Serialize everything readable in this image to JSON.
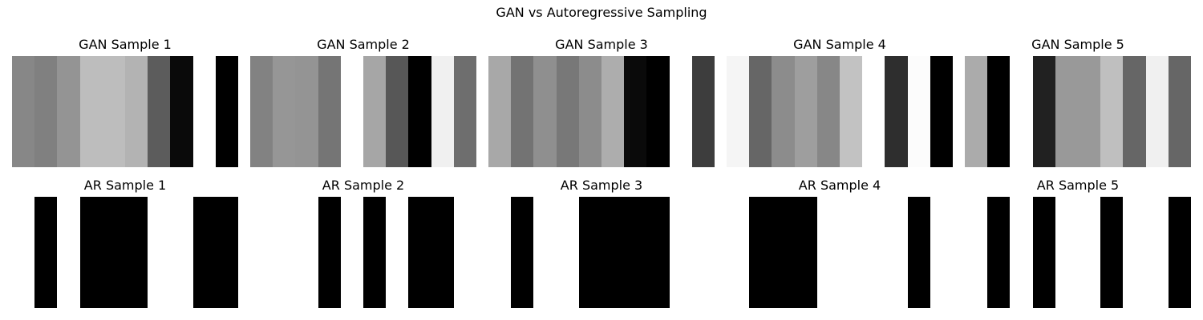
{
  "figure": {
    "title": "GAN vs Autoregressive Sampling"
  },
  "chart_data": {
    "type": "heatmap",
    "colormap": "gray",
    "value_range": [
      0,
      1
    ],
    "axes_visible": false,
    "panels": [
      {
        "row": "gan",
        "title": "GAN Sample 1",
        "values": [
          0.53,
          0.5,
          0.58,
          0.74,
          0.74,
          0.7,
          0.36,
          0.04,
          1.0,
          0.0
        ]
      },
      {
        "row": "gan",
        "title": "GAN Sample 2",
        "values": [
          0.51,
          0.59,
          0.58,
          0.46,
          1.0,
          0.65,
          0.34,
          0.0,
          0.94,
          0.43
        ]
      },
      {
        "row": "gan",
        "title": "GAN Sample 3",
        "values": [
          0.66,
          0.45,
          0.56,
          0.47,
          0.55,
          0.68,
          0.04,
          0.0,
          1.0,
          0.24
        ]
      },
      {
        "row": "gan",
        "title": "GAN Sample 4",
        "values": [
          0.96,
          0.4,
          0.55,
          0.62,
          0.53,
          0.76,
          1.0,
          0.18,
          0.99,
          0.0
        ]
      },
      {
        "row": "gan",
        "title": "GAN Sample 5",
        "values": [
          0.67,
          0.0,
          1.0,
          0.13,
          0.6,
          0.6,
          0.75,
          0.4,
          0.94,
          0.4
        ]
      },
      {
        "row": "ar",
        "title": "AR Sample 1",
        "values": [
          1,
          0,
          1,
          0,
          0,
          0,
          1,
          1,
          0,
          0
        ]
      },
      {
        "row": "ar",
        "title": "AR Sample 2",
        "values": [
          1,
          1,
          1,
          0,
          1,
          0,
          1,
          0,
          0,
          1
        ]
      },
      {
        "row": "ar",
        "title": "AR Sample 3",
        "values": [
          1,
          0,
          1,
          1,
          0,
          0,
          0,
          0,
          1,
          1
        ]
      },
      {
        "row": "ar",
        "title": "AR Sample 4",
        "values": [
          1,
          0,
          0,
          0,
          1,
          1,
          1,
          1,
          0,
          1
        ]
      },
      {
        "row": "ar",
        "title": "AR Sample 5",
        "values": [
          1,
          0,
          1,
          0,
          1,
          1,
          0,
          1,
          1,
          0
        ]
      }
    ]
  }
}
